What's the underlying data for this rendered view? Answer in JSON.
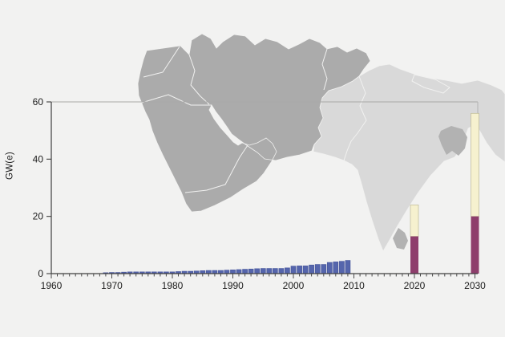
{
  "figure": {
    "background_color": "#f2f2f1",
    "title": "",
    "caption": ""
  },
  "chart_data": {
    "type": "bar",
    "title": "",
    "xlabel": "",
    "ylabel": "GW(e)",
    "ylim": [
      0,
      60
    ],
    "xlim": [
      1960,
      2031
    ],
    "y_ticks": [
      0,
      20,
      40,
      60
    ],
    "x_ticks": [
      1960,
      1970,
      1980,
      1990,
      2000,
      2010,
      2020,
      2030
    ],
    "grid": "single horizontal gridline at y=60; plot frame on top and right in light gray",
    "legend": "none",
    "series": [
      {
        "name": "historical-nuclear-capacity",
        "color": "#5565ac",
        "edge_color": "#49589e",
        "years": [
          1969,
          1970,
          1971,
          1972,
          1973,
          1974,
          1975,
          1976,
          1977,
          1978,
          1979,
          1980,
          1981,
          1982,
          1983,
          1984,
          1985,
          1986,
          1987,
          1988,
          1989,
          1990,
          1991,
          1992,
          1993,
          1994,
          1995,
          1996,
          1997,
          1998,
          1999,
          2000,
          2001,
          2002,
          2003,
          2004,
          2005,
          2006,
          2007,
          2008,
          2009
        ],
        "values": [
          0.3,
          0.4,
          0.4,
          0.5,
          0.6,
          0.6,
          0.6,
          0.6,
          0.6,
          0.6,
          0.6,
          0.6,
          0.7,
          0.8,
          0.8,
          0.9,
          1.0,
          1.1,
          1.1,
          1.1,
          1.2,
          1.3,
          1.4,
          1.5,
          1.6,
          1.7,
          1.8,
          1.8,
          1.8,
          1.8,
          2.0,
          2.6,
          2.7,
          2.7,
          3.0,
          3.2,
          3.2,
          3.9,
          4.1,
          4.3,
          4.6
        ]
      },
      {
        "name": "projection-low",
        "color": "#8e3e6c",
        "years": [
          2020,
          2030
        ],
        "values": [
          13,
          20
        ]
      },
      {
        "name": "projection-high-total",
        "color": "#f6f1cf",
        "edge_color": "#bdb896",
        "years": [
          2020,
          2030
        ],
        "values": [
          24,
          56
        ]
      }
    ]
  },
  "map": {
    "middle_east": {
      "label": "Middle East region",
      "color": "#ababab"
    },
    "south_asia": {
      "label": "South Asia region",
      "color": "#d9d9d9"
    },
    "bangladesh": {
      "label": "Bangladesh",
      "color": "#b2b2b2"
    },
    "sri_lanka": {
      "label": "Sri Lanka",
      "color": "#b2b2b2"
    }
  }
}
